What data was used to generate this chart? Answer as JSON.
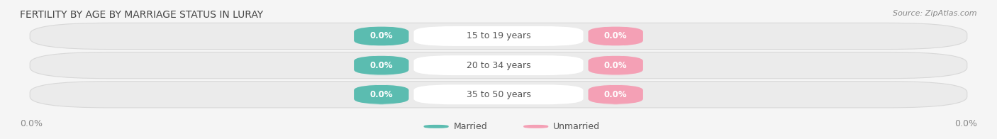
{
  "title": "FERTILITY BY AGE BY MARRIAGE STATUS IN LURAY",
  "source": "Source: ZipAtlas.com",
  "age_groups": [
    "15 to 19 years",
    "20 to 34 years",
    "35 to 50 years"
  ],
  "married_values": [
    0.0,
    0.0,
    0.0
  ],
  "unmarried_values": [
    0.0,
    0.0,
    0.0
  ],
  "married_color": "#5bbcb0",
  "unmarried_color": "#f4a0b5",
  "bar_bg_color": "#ebebeb",
  "bar_edge_color": "#d8d8d8",
  "title_fontsize": 10,
  "source_fontsize": 8,
  "age_label_fontsize": 9,
  "value_label_fontsize": 8.5,
  "tick_fontsize": 9,
  "legend_fontsize": 9,
  "axis_label_left": "0.0%",
  "axis_label_right": "0.0%",
  "fig_bg_color": "#f5f5f5",
  "legend_married": "Married",
  "legend_unmarried": "Unmarried"
}
